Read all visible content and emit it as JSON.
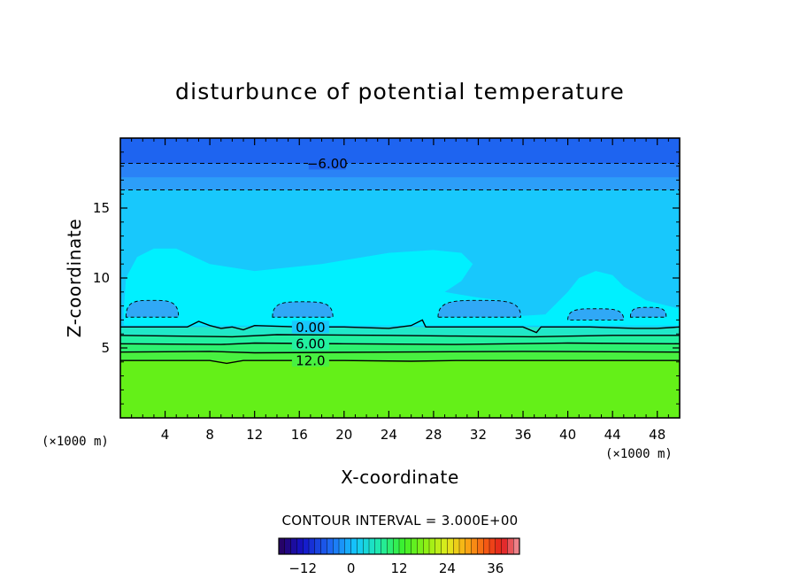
{
  "chart_data": {
    "type": "contour",
    "title": "disturbunce of potential temperature",
    "xlabel": "X-coordinate",
    "ylabel": "Z-coordinate",
    "x_unit": "(×1000 m)",
    "y_unit": "(×1000 m)",
    "xlim": [
      0,
      50
    ],
    "ylim": [
      0,
      20
    ],
    "x_ticks": [
      4,
      8,
      12,
      16,
      20,
      24,
      28,
      32,
      36,
      40,
      44,
      48
    ],
    "y_ticks": [
      5,
      10,
      15
    ],
    "contour_interval_label": "CONTOUR INTERVAL = 3.000E+00",
    "colorbar": {
      "ticks": [
        -12,
        0,
        12,
        24,
        36
      ],
      "tick_labels": [
        "−12",
        "0",
        "12",
        "24",
        "36"
      ],
      "range": [
        -18,
        42
      ]
    },
    "fill_layers": [
      {
        "z_bottom": 18.2,
        "z_top": 20,
        "value": -9,
        "color": "#1e64f0"
      },
      {
        "z_bottom": 17.2,
        "z_top": 18.2,
        "value": -6,
        "color": "#2a82f6"
      },
      {
        "z_bottom": 16.3,
        "z_top": 17.2,
        "value": -4.5,
        "color": "#2c9ef8"
      },
      {
        "z_bottom": 6.5,
        "z_top": 16.3,
        "value": -1.5,
        "color": "#18c8fc"
      },
      {
        "z_bottom": 5.9,
        "z_top": 6.5,
        "value": 1.5,
        "color": "#20e8c8"
      },
      {
        "z_bottom": 5.3,
        "z_top": 5.9,
        "value": 4.5,
        "color": "#22f0a0"
      },
      {
        "z_bottom": 4.7,
        "z_top": 5.3,
        "value": 7.5,
        "color": "#2ef070"
      },
      {
        "z_bottom": 4.1,
        "z_top": 4.7,
        "value": 10.5,
        "color": "#48f040"
      },
      {
        "z_bottom": 0,
        "z_top": 4.1,
        "value": 13.5,
        "color": "#64f018"
      }
    ],
    "contours": [
      {
        "level": -6,
        "label": "−6.00",
        "z": 18.2,
        "label_x": 18.5,
        "style": "dashed"
      },
      {
        "level": -3,
        "label": "",
        "z": 16.3,
        "style": "dashed"
      },
      {
        "level": 0,
        "label": "0.00",
        "label_x": 17,
        "style": "solid",
        "points": [
          [
            0,
            6.5
          ],
          [
            6,
            6.5
          ],
          [
            7,
            6.9
          ],
          [
            8,
            6.6
          ],
          [
            9,
            6.4
          ],
          [
            10,
            6.5
          ],
          [
            11,
            6.3
          ],
          [
            12,
            6.6
          ],
          [
            16,
            6.5
          ],
          [
            20,
            6.5
          ],
          [
            24,
            6.4
          ],
          [
            26,
            6.6
          ],
          [
            27,
            7.0
          ],
          [
            27.3,
            6.5
          ],
          [
            32,
            6.5
          ],
          [
            36,
            6.5
          ],
          [
            37.2,
            6.1
          ],
          [
            37.6,
            6.5
          ],
          [
            42,
            6.5
          ],
          [
            46,
            6.4
          ],
          [
            48,
            6.4
          ],
          [
            50,
            6.5
          ]
        ]
      },
      {
        "level": 3,
        "label": "",
        "style": "solid",
        "points": [
          [
            0,
            5.9
          ],
          [
            10,
            5.8
          ],
          [
            14,
            5.95
          ],
          [
            24,
            5.9
          ],
          [
            30,
            5.85
          ],
          [
            37,
            5.8
          ],
          [
            44,
            5.9
          ],
          [
            50,
            5.9
          ]
        ]
      },
      {
        "level": 6,
        "label": "6.00",
        "label_x": 17,
        "style": "solid",
        "points": [
          [
            0,
            5.3
          ],
          [
            9,
            5.25
          ],
          [
            12,
            5.35
          ],
          [
            20,
            5.3
          ],
          [
            30,
            5.25
          ],
          [
            40,
            5.35
          ],
          [
            50,
            5.3
          ]
        ]
      },
      {
        "level": 9,
        "label": "",
        "style": "solid",
        "points": [
          [
            0,
            4.7
          ],
          [
            8,
            4.75
          ],
          [
            12,
            4.65
          ],
          [
            24,
            4.7
          ],
          [
            36,
            4.75
          ],
          [
            50,
            4.7
          ]
        ]
      },
      {
        "level": 12,
        "label": "12.0",
        "label_x": 17,
        "style": "solid",
        "points": [
          [
            0,
            4.1
          ],
          [
            8,
            4.1
          ],
          [
            9.5,
            3.9
          ],
          [
            11,
            4.1
          ],
          [
            20,
            4.1
          ],
          [
            26,
            4.05
          ],
          [
            30,
            4.1
          ],
          [
            50,
            4.1
          ]
        ]
      }
    ],
    "warm_plume": {
      "value": -0.5,
      "color": "#00f0ff",
      "points": [
        [
          0.3,
          7.6
        ],
        [
          0.5,
          10.0
        ],
        [
          1.5,
          11.5
        ],
        [
          3,
          12.1
        ],
        [
          5,
          12.1
        ],
        [
          8,
          11.0
        ],
        [
          12,
          10.5
        ],
        [
          18,
          11.0
        ],
        [
          24,
          11.8
        ],
        [
          28,
          12.0
        ],
        [
          30.5,
          11.8
        ],
        [
          31.5,
          11.0
        ],
        [
          30.5,
          9.8
        ],
        [
          29,
          9.0
        ],
        [
          32,
          8.6
        ],
        [
          34,
          8.4
        ],
        [
          36,
          7.3
        ],
        [
          38,
          7.4
        ],
        [
          40,
          9.0
        ],
        [
          41,
          10.0
        ],
        [
          42.5,
          10.5
        ],
        [
          44,
          10.2
        ],
        [
          45,
          9.4
        ],
        [
          47,
          8.4
        ],
        [
          49,
          8.0
        ],
        [
          50,
          7.8
        ],
        [
          50,
          6.6
        ],
        [
          0.3,
          6.6
        ]
      ]
    },
    "cold_pockets": [
      {
        "x": [
          0.5,
          5.2
        ],
        "z_bottom": 7.2,
        "z_top": 8.4,
        "level": -3
      },
      {
        "x": [
          13.6,
          19.0
        ],
        "z_bottom": 7.2,
        "z_top": 8.3,
        "level": -3
      },
      {
        "x": [
          28.4,
          35.8
        ],
        "z_bottom": 7.2,
        "z_top": 8.4,
        "level": -3
      },
      {
        "x": [
          40.0,
          45.0
        ],
        "z_bottom": 7.0,
        "z_top": 7.8,
        "level": -3
      },
      {
        "x": [
          45.6,
          48.8
        ],
        "z_bottom": 7.2,
        "z_top": 7.9,
        "level": -3
      }
    ]
  }
}
